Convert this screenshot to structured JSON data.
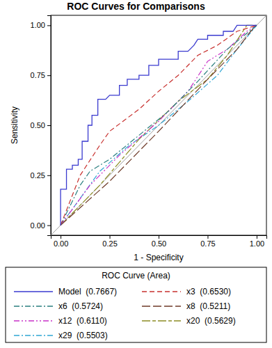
{
  "chart_data": {
    "type": "line",
    "title": "ROC Curves for Comparisons",
    "x_label": "1 - Specificity",
    "y_label": "Sensitivity",
    "legend_title": "ROC Curve (Area)",
    "legend": "bottom",
    "xlim": [
      -0.05,
      1.05
    ],
    "ylim": [
      -0.05,
      1.05
    ],
    "xticks": [
      {
        "value": 0,
        "label": "0.00"
      },
      {
        "value": 0.25,
        "label": "0.25"
      },
      {
        "value": 0.5,
        "label": "0.50"
      },
      {
        "value": 0.75,
        "label": "0.75"
      },
      {
        "value": 1,
        "label": "1.00"
      }
    ],
    "yticks": [
      {
        "value": 0,
        "label": "0.00"
      },
      {
        "value": 0.25,
        "label": "0.25"
      },
      {
        "value": 0.5,
        "label": "0.50"
      },
      {
        "value": 0.75,
        "label": "0.75"
      },
      {
        "value": 1,
        "label": "1.00"
      }
    ],
    "series": [
      {
        "name": "Model  (0.7667)",
        "color": "#3a3acf",
        "line_style": "solid",
        "x": [
          0,
          0,
          0.03,
          0.03,
          0.06,
          0.06,
          0.09,
          0.09,
          0.11,
          0.11,
          0.14,
          0.14,
          0.16,
          0.16,
          0.19,
          0.19,
          0.23,
          0.25,
          0.3,
          0.3,
          0.34,
          0.34,
          0.4,
          0.4,
          0.45,
          0.45,
          0.5,
          0.5,
          0.6,
          0.6,
          0.65,
          0.68,
          0.7,
          0.75,
          0.75,
          0.83,
          0.83,
          0.88,
          0.9,
          1
        ],
        "values": [
          0,
          0.18,
          0.18,
          0.28,
          0.28,
          0.3,
          0.3,
          0.33,
          0.33,
          0.42,
          0.42,
          0.5,
          0.5,
          0.55,
          0.55,
          0.63,
          0.63,
          0.65,
          0.65,
          0.7,
          0.7,
          0.73,
          0.73,
          0.75,
          0.75,
          0.8,
          0.8,
          0.83,
          0.83,
          0.87,
          0.87,
          0.9,
          0.93,
          0.93,
          0.95,
          0.95,
          0.97,
          0.97,
          1,
          1
        ]
      },
      {
        "name": "x3  (0.6530)",
        "color": "#c8312f",
        "line_style": "dash",
        "x": [
          0,
          0.1,
          0.2,
          0.25,
          0.4,
          0.5,
          0.6,
          0.7,
          0.8,
          0.9,
          1
        ],
        "values": [
          0,
          0.25,
          0.4,
          0.47,
          0.58,
          0.67,
          0.75,
          0.85,
          0.9,
          0.97,
          1
        ]
      },
      {
        "name": "x6  (0.5724)",
        "color": "#2a7f7f",
        "line_style": "dashdot",
        "x": [
          0,
          0.1,
          0.15,
          0.25,
          0.4,
          0.55,
          0.7,
          0.85,
          1
        ],
        "values": [
          0,
          0.2,
          0.27,
          0.33,
          0.45,
          0.57,
          0.72,
          0.88,
          1
        ]
      },
      {
        "name": "x8  (0.5211)",
        "color": "#6e3a28",
        "line_style": "longdash",
        "x": [
          0,
          0.25,
          0.5,
          0.75,
          0.9,
          0.97,
          1
        ],
        "values": [
          0,
          0.22,
          0.47,
          0.73,
          0.88,
          0.97,
          1
        ]
      },
      {
        "name": "x12  (0.6110)",
        "color": "#c832c8",
        "line_style": "dashdotdot",
        "x": [
          0,
          0.15,
          0.3,
          0.5,
          0.65,
          0.75,
          0.85,
          0.95,
          1
        ],
        "values": [
          0,
          0.2,
          0.35,
          0.52,
          0.67,
          0.82,
          0.88,
          0.97,
          1
        ]
      },
      {
        "name": "x20  (0.5629)",
        "color": "#8c8c24",
        "line_style": "longshort",
        "x": [
          0,
          0.2,
          0.4,
          0.6,
          0.75,
          0.85,
          0.95,
          1
        ],
        "values": [
          0,
          0.2,
          0.43,
          0.62,
          0.73,
          0.85,
          1,
          1
        ]
      },
      {
        "name": "x29  (0.5503)",
        "color": "#2fa6d4",
        "line_style": "dashdot",
        "x": [
          0,
          0.2,
          0.35,
          0.5,
          0.65,
          0.8,
          0.9,
          1
        ],
        "values": [
          0,
          0.27,
          0.4,
          0.5,
          0.62,
          0.75,
          0.88,
          1
        ]
      }
    ]
  }
}
